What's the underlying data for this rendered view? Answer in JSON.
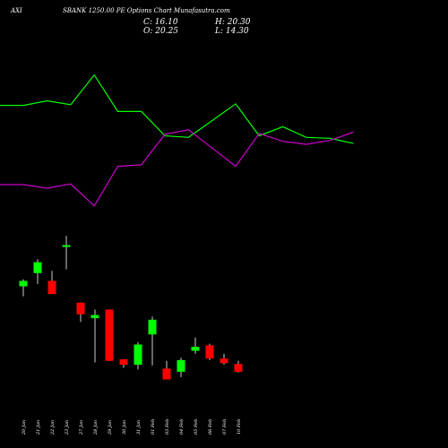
{
  "header": {
    "symbol": "AXI",
    "title": "SBANK 1250.00 PE Options Chart Munafasutra.com",
    "close_label": "C: 16.10",
    "high_label": "H: 20.30",
    "open_label": "O: 20.25",
    "low_label": "L: 14.30"
  },
  "colors": {
    "background": "#000000",
    "up": "#00ff00",
    "down": "#ff0000",
    "line_green": "#00ff00",
    "line_magenta": "#cc00cc",
    "wick": "#ffffff"
  },
  "chart_data": {
    "type": "candlestick",
    "categories": [
      "20 Jan",
      "21 Jan",
      "22 Jan",
      "23 Jan",
      "27 Jan",
      "28 Jan",
      "29 Jan",
      "30 Jan",
      "31 Jan",
      "01 Feb",
      "03 Feb",
      "04 Feb",
      "05 Feb",
      "06 Feb",
      "07 Feb",
      "10 Feb"
    ],
    "candles": [
      {
        "open": 33.9,
        "high": 34.8,
        "low": 32.6,
        "close": 34.6
      },
      {
        "open": 35.6,
        "high": 37.4,
        "low": 34.2,
        "close": 37.0
      },
      {
        "open": 34.6,
        "high": 35.9,
        "low": 32.9,
        "close": 32.9
      },
      {
        "open": 39.2,
        "high": 40.4,
        "low": 36.1,
        "close": 39.2
      },
      {
        "open": 31.8,
        "high": 31.8,
        "low": 29.3,
        "close": 30.3
      },
      {
        "open": 29.8,
        "high": 30.9,
        "low": 24.1,
        "close": 30.2
      },
      {
        "open": 30.9,
        "high": 30.9,
        "low": 24.3,
        "close": 24.3
      },
      {
        "open": 24.5,
        "high": 24.5,
        "low": 23.4,
        "close": 23.8
      },
      {
        "open": 23.8,
        "high": 26.7,
        "low": 23.2,
        "close": 26.4
      },
      {
        "open": 27.7,
        "high": 30.0,
        "low": 23.7,
        "close": 29.6
      },
      {
        "open": 23.3,
        "high": 24.3,
        "low": 21.9,
        "close": 21.9
      },
      {
        "open": 22.9,
        "high": 24.7,
        "low": 22.2,
        "close": 24.4
      },
      {
        "open": 25.6,
        "high": 27.3,
        "low": 25.2,
        "close": 26.1
      },
      {
        "open": 26.3,
        "high": 26.5,
        "low": 24.4,
        "close": 24.6
      },
      {
        "open": 24.6,
        "high": 25.2,
        "low": 23.8,
        "close": 24.0
      },
      {
        "open": 23.9,
        "high": 24.3,
        "low": 22.8,
        "close": 22.9
      }
    ],
    "overlay_series": [
      {
        "color": "green",
        "values": [
          1.6,
          1.6,
          1.75,
          1.62,
          2.6,
          1.4,
          1.4,
          0.6,
          0.55,
          1.1,
          1.65,
          0.6,
          0.9,
          0.55,
          0.52,
          0.35
        ]
      },
      {
        "color": "magenta",
        "values": [
          -1.0,
          -1.0,
          -1.12,
          -0.98,
          -1.7,
          -0.4,
          -0.35,
          0.65,
          0.8,
          0.2,
          -0.4,
          0.68,
          0.42,
          0.32,
          0.45,
          0.72
        ]
      }
    ]
  }
}
